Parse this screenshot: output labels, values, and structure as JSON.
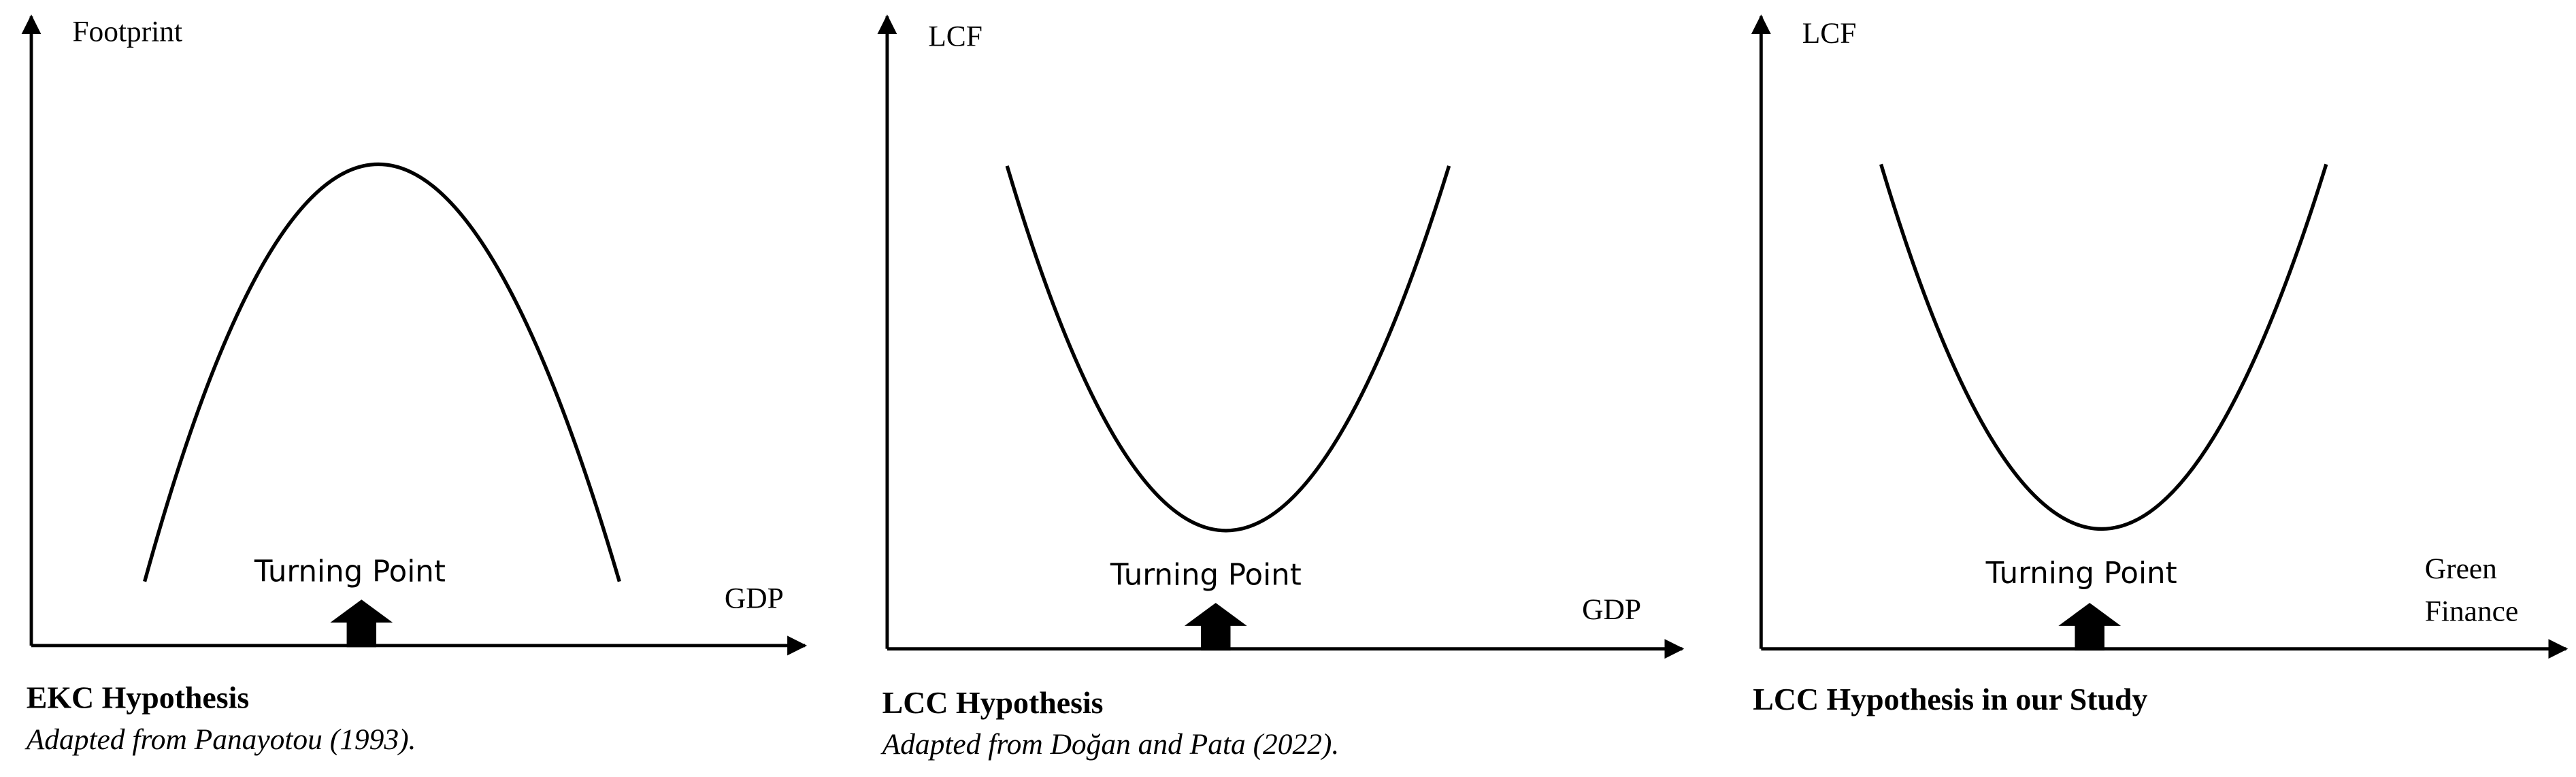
{
  "panels": [
    {
      "y_label": "Footprint",
      "x_label": [
        "GDP"
      ],
      "turning_point": "Turning Point",
      "caption_title": "EKC Hypothesis",
      "caption_source": "Adapted from Panayotou (1993)."
    },
    {
      "y_label": "LCF",
      "x_label": [
        "GDP"
      ],
      "turning_point": "Turning Point",
      "caption_title": "LCC Hypothesis",
      "caption_source": "Adapted from Doğan and Pata (2022)."
    },
    {
      "y_label": "LCF",
      "x_label": [
        "Green",
        "Finance"
      ],
      "turning_point": "Turning Point",
      "caption_title": "LCC Hypothesis in our Study"
    }
  ]
}
